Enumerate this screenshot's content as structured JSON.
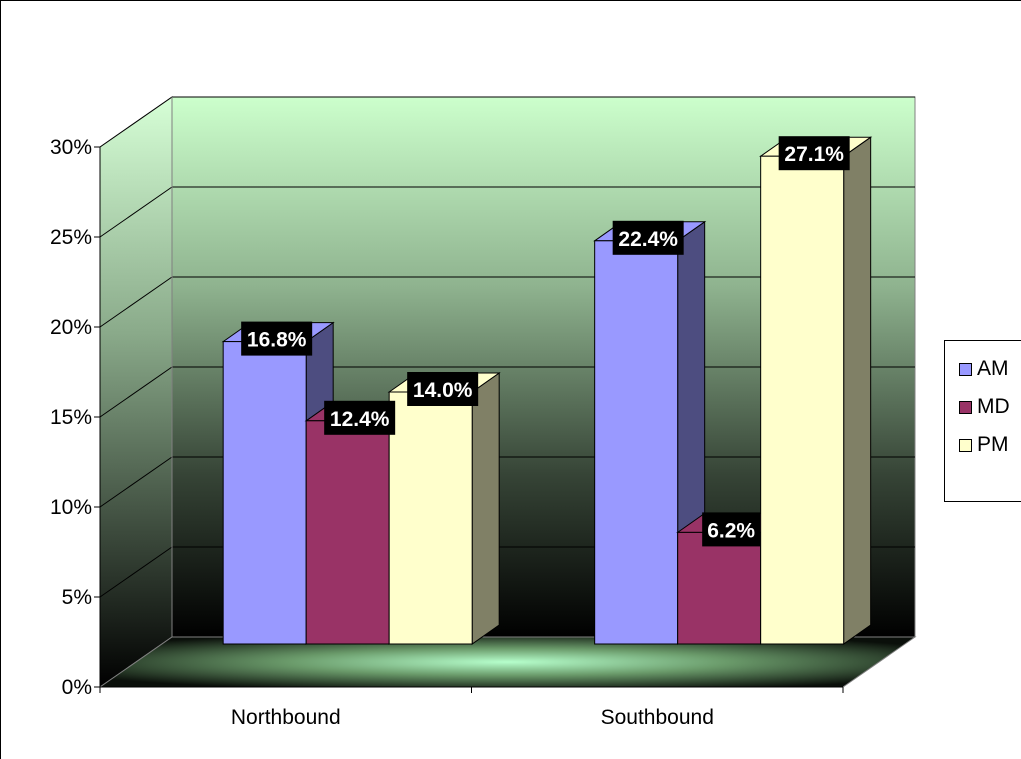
{
  "chart_data": {
    "type": "bar",
    "categories": [
      "Northbound",
      "Southbound"
    ],
    "series": [
      {
        "name": "AM",
        "values": [
          16.8,
          22.4
        ],
        "labels": [
          "16.8%",
          "22.4%"
        ],
        "color": "#9999FF",
        "side_color": "#4D4D80"
      },
      {
        "name": "MD",
        "values": [
          12.4,
          6.2
        ],
        "labels": [
          "12.4%",
          "6.2%"
        ],
        "color": "#993366",
        "side_color": "#4D1A33"
      },
      {
        "name": "PM",
        "values": [
          14.0,
          27.1
        ],
        "labels": [
          "14.0%",
          "27.1%"
        ],
        "color": "#FFFFCC",
        "side_color": "#808066"
      }
    ],
    "y_ticks": [
      "0%",
      "5%",
      "10%",
      "15%",
      "20%",
      "25%",
      "30%"
    ],
    "ylim": [
      0,
      30
    ],
    "grid": true,
    "legend_position": "right",
    "three_d": true,
    "wall_gradient": [
      "#CCFFCC",
      "#000000"
    ]
  }
}
